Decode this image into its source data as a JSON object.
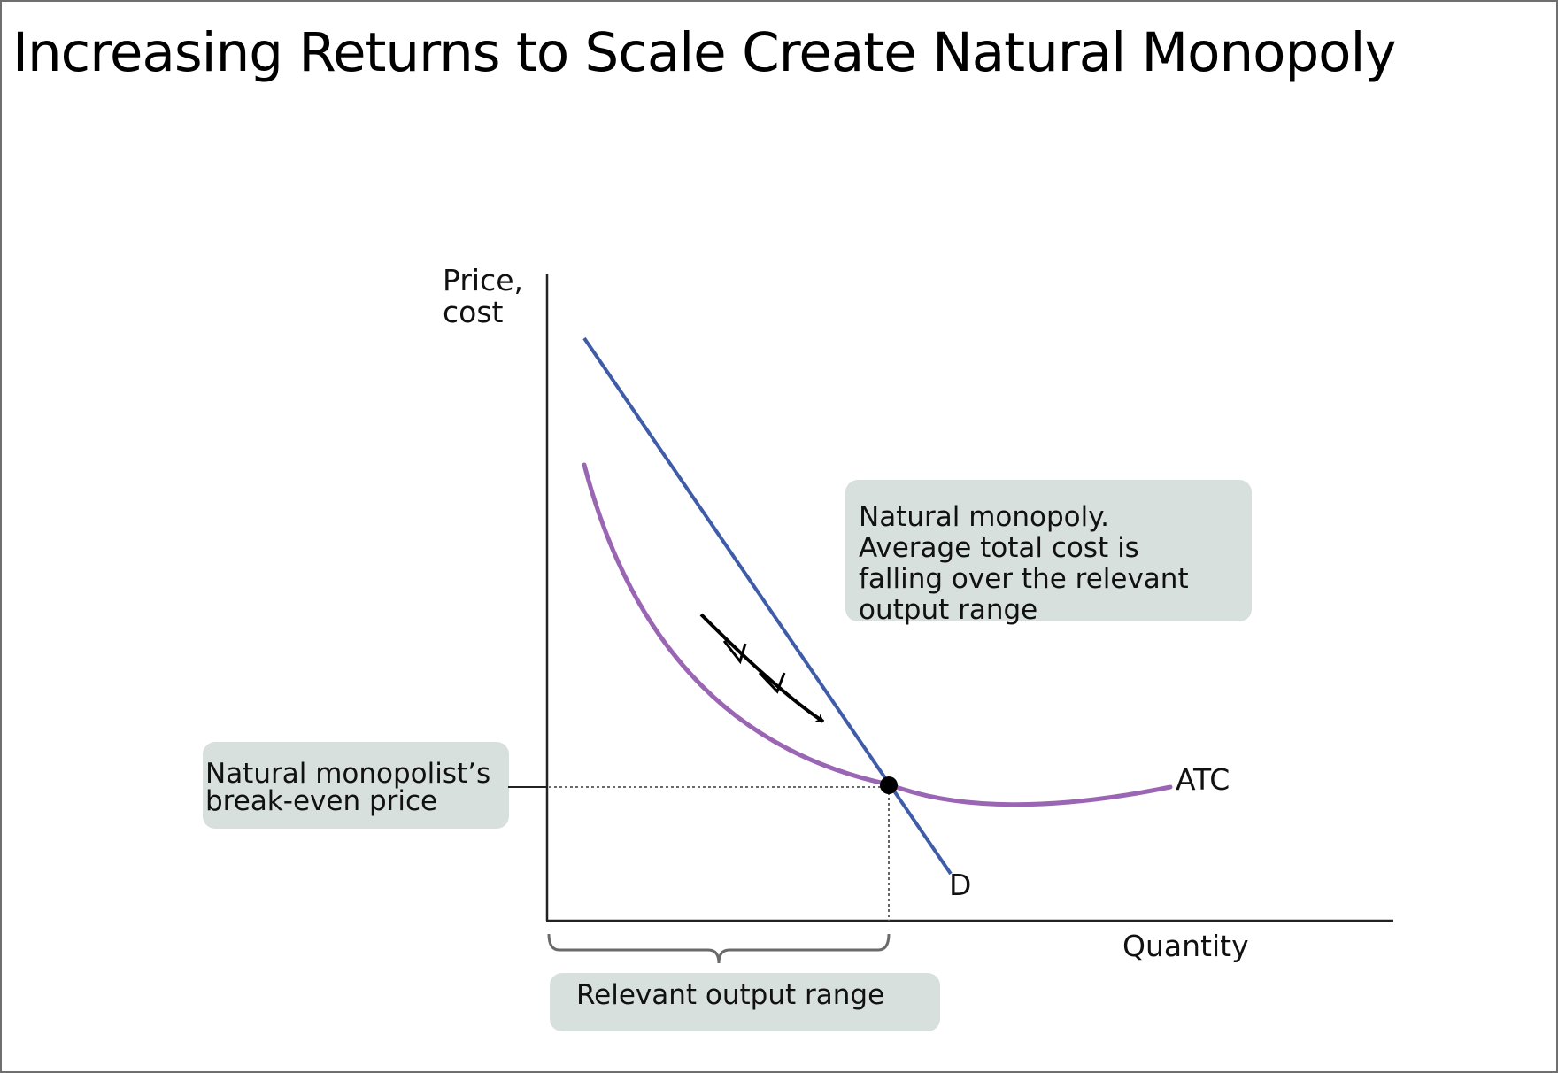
{
  "title": "Increasing Returns to Scale Create Natural Monopoly",
  "axes": {
    "y_label_lines": [
      "Price,",
      "cost"
    ],
    "x_label": "Quantity"
  },
  "curves": {
    "demand_label": "D",
    "atc_label": "ATC"
  },
  "callouts": {
    "natural_monopoly_lines": [
      "Natural monopoly.",
      "Average total cost is",
      "falling over the relevant",
      "output range"
    ],
    "break_even_lines": [
      "Natural monopolist’s",
      "break-even price"
    ],
    "relevant_range": "Relevant output range"
  },
  "colors": {
    "demand": "#3f5ca8",
    "atc": "#9a66b4",
    "callout_bg": "#d8e0de",
    "axis": "#222222",
    "arrow": "#000000"
  }
}
